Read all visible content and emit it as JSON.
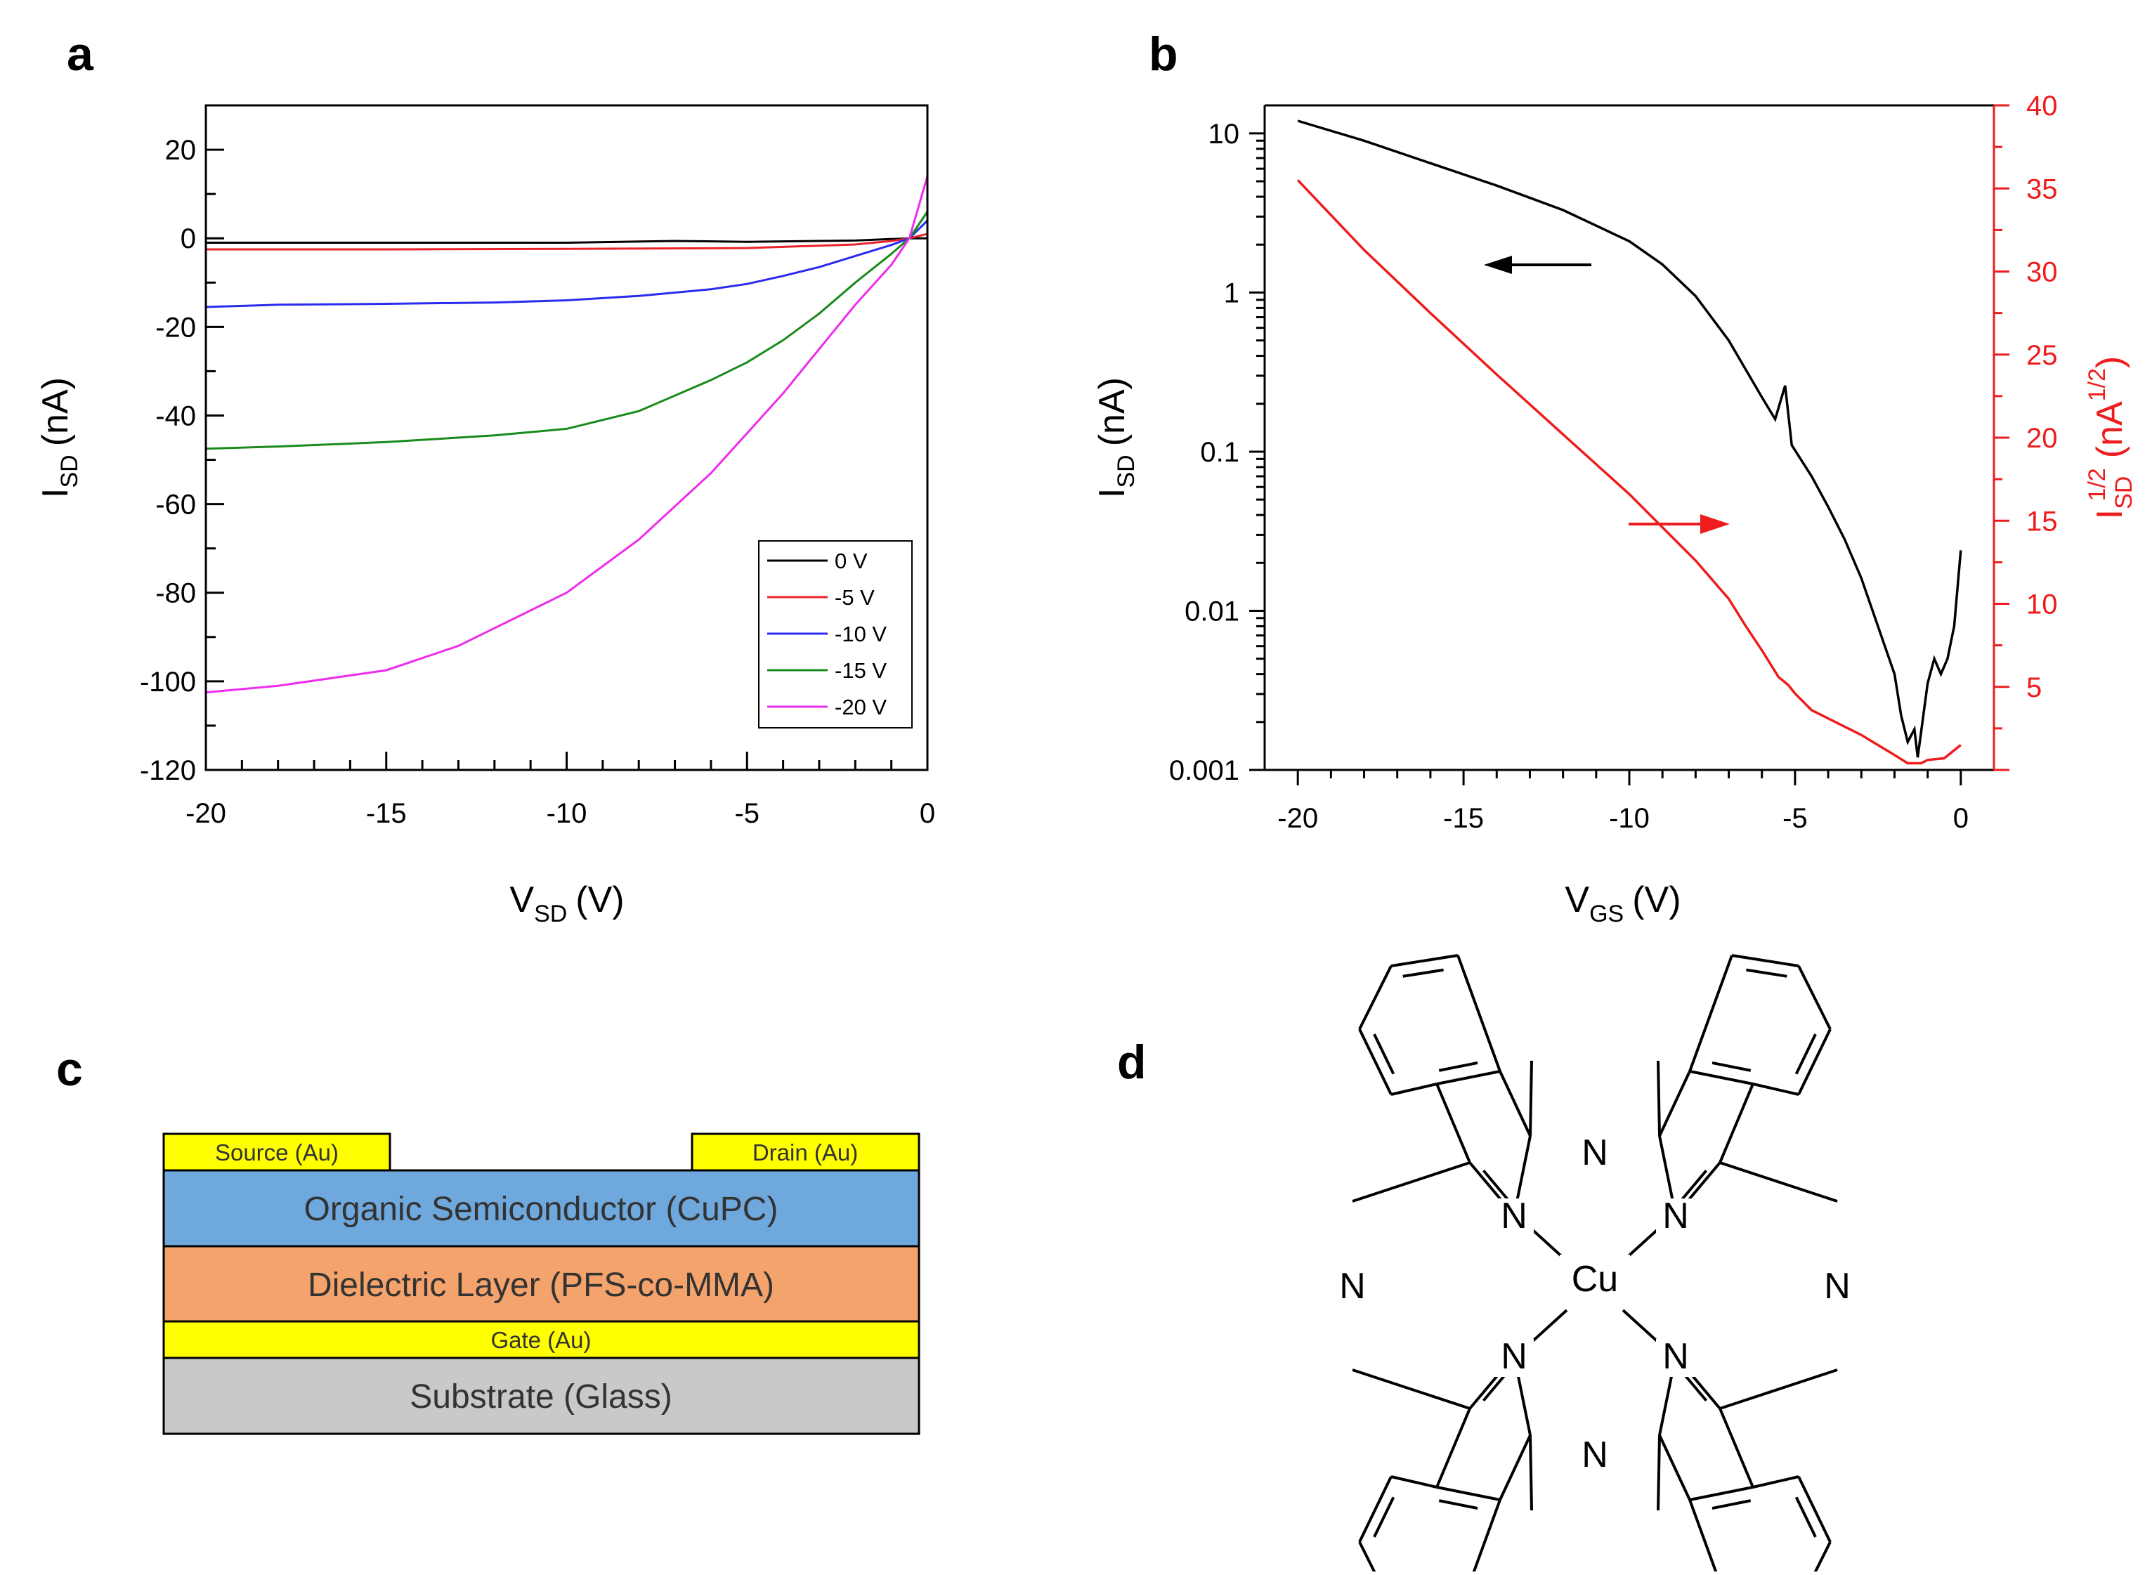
{
  "panel_labels": {
    "a": "a",
    "b": "b",
    "c": "c",
    "d": "d"
  },
  "chart_data": [
    {
      "id": "a",
      "type": "line",
      "xlabel": {
        "main": "V",
        "sub": "SD",
        "unit": "(V)"
      },
      "ylabel": {
        "main": "I",
        "sub": "SD",
        "unit": "(nA)"
      },
      "xlim": [
        -20,
        0
      ],
      "ylim": [
        -120,
        30
      ],
      "xticks": [
        -20,
        -15,
        -10,
        -5,
        0
      ],
      "yticks": [
        -120,
        -100,
        -80,
        -60,
        -40,
        -20,
        0,
        20
      ],
      "legend_position": "bottom-right",
      "series": [
        {
          "name": "0 V",
          "color": "#000000",
          "points": [
            [
              -20,
              -1
            ],
            [
              -15,
              -1
            ],
            [
              -10,
              -1
            ],
            [
              -7,
              -0.6
            ],
            [
              -5,
              -0.8
            ],
            [
              -2,
              -0.5
            ],
            [
              -0.5,
              0
            ],
            [
              0,
              0
            ]
          ]
        },
        {
          "name": "-5 V",
          "color": "#e8242a",
          "points": [
            [
              -20,
              -2.5
            ],
            [
              -15,
              -2.5
            ],
            [
              -10,
              -2.4
            ],
            [
              -5,
              -2.2
            ],
            [
              -2,
              -1.4
            ],
            [
              -1,
              -0.6
            ],
            [
              -0.5,
              0
            ],
            [
              0,
              1
            ]
          ]
        },
        {
          "name": "-10 V",
          "color": "#2b2bf0",
          "points": [
            [
              -20,
              -15.5
            ],
            [
              -18,
              -15
            ],
            [
              -15,
              -14.8
            ],
            [
              -12,
              -14.5
            ],
            [
              -10,
              -14
            ],
            [
              -8,
              -13
            ],
            [
              -6,
              -11.5
            ],
            [
              -5,
              -10.3
            ],
            [
              -4,
              -8.5
            ],
            [
              -3,
              -6.5
            ],
            [
              -2,
              -4
            ],
            [
              -1,
              -1.5
            ],
            [
              -0.5,
              0
            ],
            [
              0,
              4
            ]
          ]
        },
        {
          "name": "-15 V",
          "color": "#1a8a1a",
          "points": [
            [
              -20,
              -47.5
            ],
            [
              -18,
              -47
            ],
            [
              -15,
              -46
            ],
            [
              -12,
              -44.5
            ],
            [
              -10,
              -43
            ],
            [
              -8,
              -39
            ],
            [
              -6,
              -32
            ],
            [
              -5,
              -28
            ],
            [
              -4,
              -23
            ],
            [
              -3,
              -17
            ],
            [
              -2,
              -10
            ],
            [
              -1,
              -3.5
            ],
            [
              -0.5,
              0
            ],
            [
              0,
              6
            ]
          ]
        },
        {
          "name": "-20 V",
          "color": "#ee2cee",
          "points": [
            [
              -20,
              -102.5
            ],
            [
              -18,
              -101
            ],
            [
              -15,
              -97.5
            ],
            [
              -13,
              -92
            ],
            [
              -12,
              -88
            ],
            [
              -10,
              -80
            ],
            [
              -8,
              -68
            ],
            [
              -6,
              -53
            ],
            [
              -5,
              -44
            ],
            [
              -4,
              -35
            ],
            [
              -3,
              -25
            ],
            [
              -2,
              -15
            ],
            [
              -1,
              -6
            ],
            [
              -0.5,
              0
            ],
            [
              0,
              14
            ]
          ]
        }
      ]
    },
    {
      "id": "b",
      "type": "line",
      "xlabel": {
        "main": "V",
        "sub": "GS",
        "unit": "(V)"
      },
      "ylabel": {
        "main": "I",
        "sub": "SD",
        "unit": "(nA)"
      },
      "y2label": {
        "main": "I",
        "sub": "SD",
        "sup": "1/2",
        "unit_pre": "(nA",
        "unit_sup": "1/2",
        "unit_post": ")"
      },
      "xlim": [
        -21,
        1
      ],
      "ylim_log": [
        0.001,
        15
      ],
      "y2lim": [
        0,
        40
      ],
      "xticks": [
        -20,
        -15,
        -10,
        -5,
        0
      ],
      "yticks_log": [
        {
          "v": 0.001,
          "label": "0.001"
        },
        {
          "v": 0.01,
          "label": "0.01"
        },
        {
          "v": 0.1,
          "label": "0.1"
        },
        {
          "v": 1,
          "label": "1"
        },
        {
          "v": 10,
          "label": "10"
        }
      ],
      "y2ticks": [
        5,
        10,
        15,
        20,
        25,
        30,
        35,
        40
      ],
      "series": [
        {
          "name": "I_SD (log)",
          "axis": "left",
          "color": "#000000",
          "points": [
            [
              -20,
              12
            ],
            [
              -18,
              9
            ],
            [
              -16,
              6.5
            ],
            [
              -14,
              4.7
            ],
            [
              -12,
              3.3
            ],
            [
              -10,
              2.1
            ],
            [
              -9,
              1.5
            ],
            [
              -8,
              0.95
            ],
            [
              -7,
              0.5
            ],
            [
              -6,
              0.22
            ],
            [
              -5.6,
              0.16
            ],
            [
              -5.3,
              0.26
            ],
            [
              -5.1,
              0.11
            ],
            [
              -4.5,
              0.07
            ],
            [
              -4,
              0.045
            ],
            [
              -3.5,
              0.028
            ],
            [
              -3,
              0.016
            ],
            [
              -2.5,
              0.008
            ],
            [
              -2,
              0.004
            ],
            [
              -1.8,
              0.0022
            ],
            [
              -1.6,
              0.0015
            ],
            [
              -1.4,
              0.0018
            ],
            [
              -1.3,
              0.0012
            ],
            [
              -1,
              0.0035
            ],
            [
              -0.8,
              0.005
            ],
            [
              -0.6,
              0.004
            ],
            [
              -0.4,
              0.005
            ],
            [
              -0.2,
              0.008
            ],
            [
              0,
              0.024
            ]
          ]
        },
        {
          "name": "I_SD^1/2",
          "axis": "right",
          "color": "#ee1c1c",
          "points": [
            [
              -20,
              35.5
            ],
            [
              -18,
              31.3
            ],
            [
              -16,
              27.5
            ],
            [
              -14,
              23.8
            ],
            [
              -12,
              20.2
            ],
            [
              -10,
              16.6
            ],
            [
              -8,
              12.6
            ],
            [
              -7,
              10.3
            ],
            [
              -6.5,
              8.7
            ],
            [
              -6,
              7.2
            ],
            [
              -5.5,
              5.6
            ],
            [
              -5.2,
              5.1
            ],
            [
              -5,
              4.6
            ],
            [
              -4.5,
              3.6
            ],
            [
              -4,
              3.1
            ],
            [
              -3,
              2.1
            ],
            [
              -2,
              0.9
            ],
            [
              -1.6,
              0.4
            ],
            [
              -1.2,
              0.4
            ],
            [
              -1,
              0.6
            ],
            [
              -0.5,
              0.7
            ],
            [
              0,
              1.5
            ]
          ]
        }
      ],
      "annotations": [
        {
          "type": "arrow",
          "direction": "left",
          "color": "#000000",
          "points_to": "left axis"
        },
        {
          "type": "arrow",
          "direction": "right",
          "color": "#ee1c1c",
          "points_to": "right axis"
        }
      ]
    }
  ],
  "device": {
    "source": "Source (Au)",
    "drain": "Drain (Au)",
    "semiconductor": "Organic Semiconductor (CuPC)",
    "dielectric": "Dielectric Layer (PFS-co-MMA)",
    "gate": "Gate (Au)",
    "substrate": "Substrate (Glass)",
    "colors": {
      "gold": "#ffff00",
      "semiconductor": "#6fa8dc",
      "dielectric": "#f4a36c",
      "substrate": "#c9c9c9"
    }
  },
  "molecule": {
    "metal": "Cu",
    "nitrogen": "N"
  }
}
